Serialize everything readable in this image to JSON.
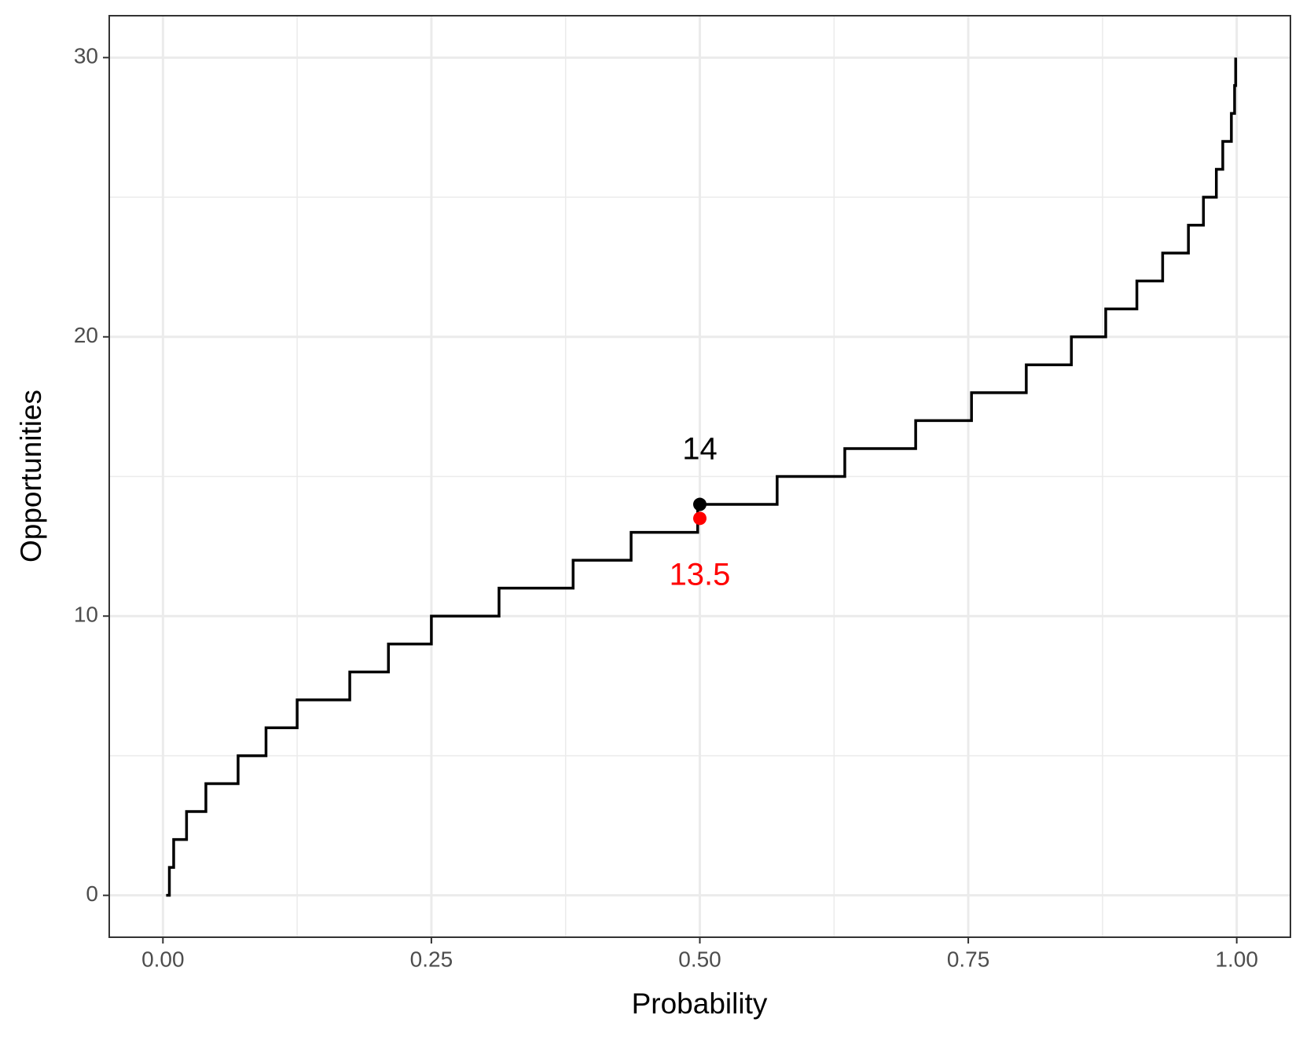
{
  "chart_data": {
    "type": "step",
    "x_label": "Probability",
    "y_label": "Opportunities",
    "x": [
      0.003,
      0.006,
      0.01,
      0.022,
      0.04,
      0.07,
      0.096,
      0.125,
      0.174,
      0.21,
      0.25,
      0.313,
      0.382,
      0.436,
      0.498,
      0.572,
      0.635,
      0.701,
      0.753,
      0.804,
      0.846,
      0.878,
      0.907,
      0.931,
      0.955,
      0.969,
      0.981,
      0.987,
      0.995,
      0.998,
      0.999
    ],
    "values": [
      0,
      1,
      2,
      3,
      4,
      5,
      6,
      7,
      8,
      9,
      10,
      11,
      12,
      13,
      14,
      15,
      16,
      17,
      18,
      19,
      20,
      21,
      22,
      23,
      24,
      25,
      26,
      27,
      28,
      29,
      30
    ],
    "color": "#000000",
    "points": [
      {
        "x": 0.5,
        "y": 14,
        "label": "14",
        "color": "#000000"
      },
      {
        "x": 0.5,
        "y": 13.5,
        "label": "13.5",
        "color": "#ff0000"
      }
    ],
    "xlim": [
      -0.05,
      1.05
    ],
    "ylim": [
      -1.5,
      31.5
    ],
    "xticks": [
      {
        "value": 0,
        "label": "0.00"
      },
      {
        "value": 0.25,
        "label": "0.25"
      },
      {
        "value": 0.5,
        "label": "0.50"
      },
      {
        "value": 0.75,
        "label": "0.75"
      },
      {
        "value": 1,
        "label": "1.00"
      }
    ],
    "yticks": [
      0,
      10,
      20,
      30
    ],
    "x_minor_grid": [
      0.125,
      0.375,
      0.625,
      0.875
    ],
    "y_minor_grid": [
      5,
      15,
      25
    ],
    "grid": true
  }
}
